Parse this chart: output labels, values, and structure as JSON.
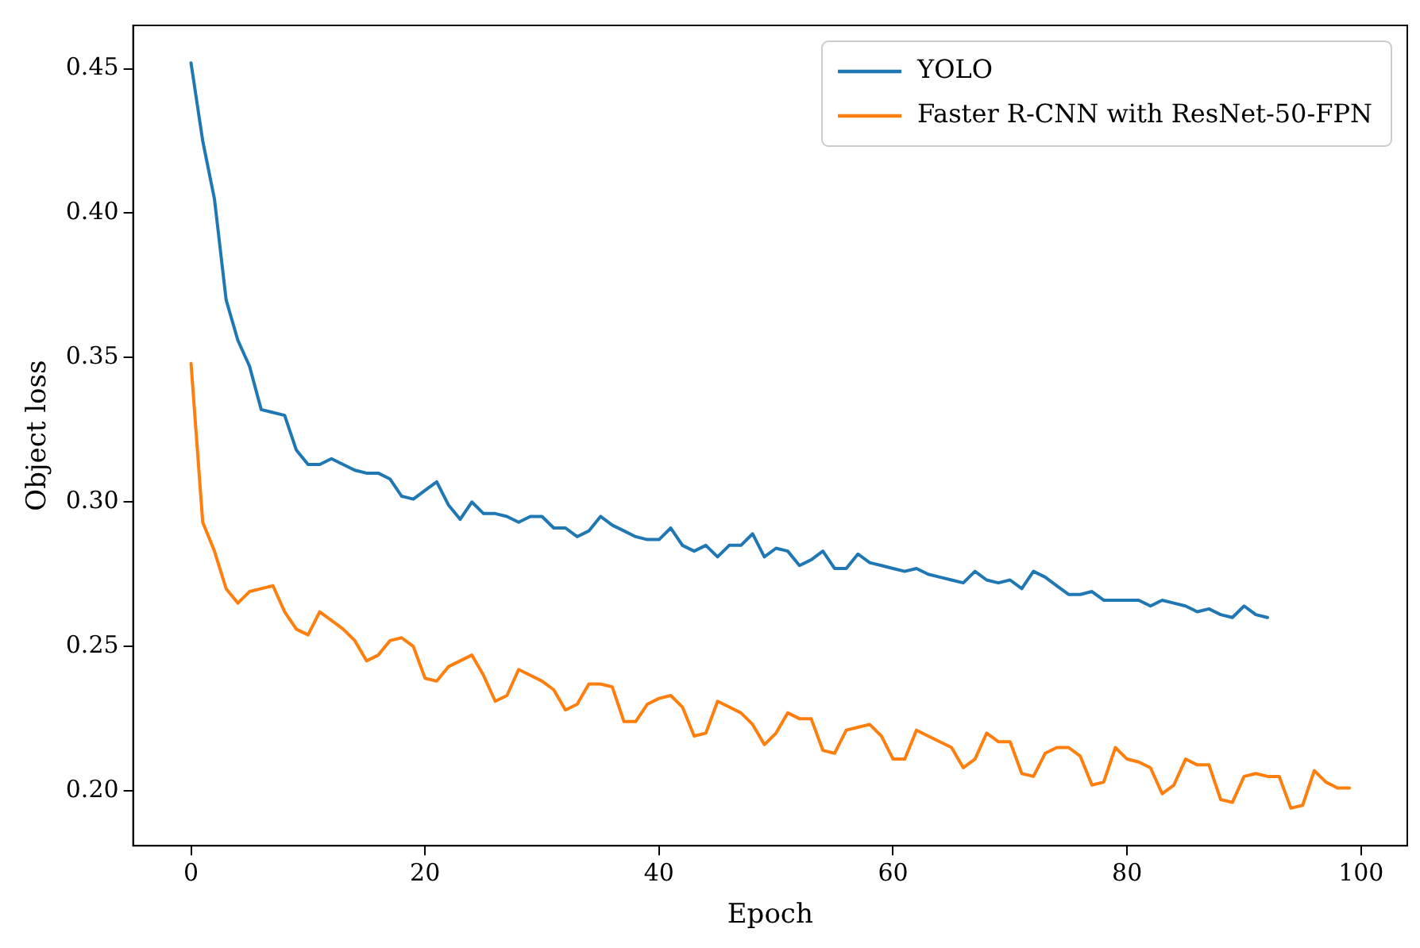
{
  "chart_data": {
    "type": "line",
    "xlabel": "Epoch",
    "ylabel": "Object loss",
    "legend": "top right",
    "grid": false,
    "marker": "none",
    "line_style": "solid",
    "xlim": [
      -4.95,
      103.95
    ],
    "xticks": [
      0,
      20,
      40,
      60,
      80,
      100
    ],
    "ylim": [
      0.181,
      0.465
    ],
    "yticks": [
      {
        "value": 0.2,
        "label": "0.20"
      },
      {
        "value": 0.25,
        "label": "0.25"
      },
      {
        "value": 0.3,
        "label": "0.30"
      },
      {
        "value": 0.35,
        "label": "0.35"
      },
      {
        "value": 0.4,
        "label": "0.40"
      },
      {
        "value": 0.45,
        "label": "0.45"
      }
    ],
    "series": [
      {
        "name": "YOLO",
        "color": "#1f77b4",
        "x": [
          0,
          1,
          2,
          3,
          4,
          5,
          6,
          7,
          8,
          9,
          10,
          11,
          12,
          13,
          14,
          15,
          16,
          17,
          18,
          19,
          20,
          21,
          22,
          23,
          24,
          25,
          26,
          27,
          28,
          29,
          30,
          31,
          32,
          33,
          34,
          35,
          36,
          37,
          38,
          39,
          40,
          41,
          42,
          43,
          44,
          45,
          46,
          47,
          48,
          49,
          50,
          51,
          52,
          53,
          54,
          55,
          56,
          57,
          58,
          59,
          60,
          61,
          62,
          63,
          64,
          65,
          66,
          67,
          68,
          69,
          70,
          71,
          72,
          73,
          74,
          75,
          76,
          77,
          78,
          79,
          80,
          81,
          82,
          83,
          84,
          85,
          86,
          87,
          88,
          89,
          90,
          91,
          92
        ],
        "values": [
          0.452,
          0.425,
          0.405,
          0.37,
          0.356,
          0.347,
          0.332,
          0.331,
          0.33,
          0.318,
          0.313,
          0.313,
          0.315,
          0.313,
          0.311,
          0.31,
          0.31,
          0.308,
          0.302,
          0.301,
          0.304,
          0.307,
          0.299,
          0.294,
          0.3,
          0.296,
          0.296,
          0.295,
          0.293,
          0.295,
          0.295,
          0.291,
          0.291,
          0.288,
          0.29,
          0.295,
          0.292,
          0.29,
          0.288,
          0.287,
          0.287,
          0.291,
          0.285,
          0.283,
          0.285,
          0.281,
          0.285,
          0.285,
          0.289,
          0.281,
          0.284,
          0.283,
          0.278,
          0.28,
          0.283,
          0.277,
          0.277,
          0.282,
          0.279,
          0.278,
          0.277,
          0.276,
          0.277,
          0.275,
          0.274,
          0.273,
          0.272,
          0.276,
          0.273,
          0.272,
          0.273,
          0.27,
          0.276,
          0.274,
          0.271,
          0.268,
          0.268,
          0.269,
          0.266,
          0.266,
          0.266,
          0.266,
          0.264,
          0.266,
          0.265,
          0.264,
          0.262,
          0.263,
          0.261,
          0.26,
          0.264,
          0.261,
          0.26
        ]
      },
      {
        "name": "Faster R-CNN with ResNet-50-FPN",
        "color": "#ff7f0e",
        "x": [
          0,
          1,
          2,
          3,
          4,
          5,
          6,
          7,
          8,
          9,
          10,
          11,
          12,
          13,
          14,
          15,
          16,
          17,
          18,
          19,
          20,
          21,
          22,
          23,
          24,
          25,
          26,
          27,
          28,
          29,
          30,
          31,
          32,
          33,
          34,
          35,
          36,
          37,
          38,
          39,
          40,
          41,
          42,
          43,
          44,
          45,
          46,
          47,
          48,
          49,
          50,
          51,
          52,
          53,
          54,
          55,
          56,
          57,
          58,
          59,
          60,
          61,
          62,
          63,
          64,
          65,
          66,
          67,
          68,
          69,
          70,
          71,
          72,
          73,
          74,
          75,
          76,
          77,
          78,
          79,
          80,
          81,
          82,
          83,
          84,
          85,
          86,
          87,
          88,
          89,
          90,
          91,
          92,
          93,
          94,
          95,
          96,
          97,
          98,
          99
        ],
        "values": [
          0.348,
          0.293,
          0.283,
          0.27,
          0.265,
          0.269,
          0.27,
          0.271,
          0.262,
          0.256,
          0.254,
          0.262,
          0.259,
          0.256,
          0.252,
          0.245,
          0.247,
          0.252,
          0.253,
          0.25,
          0.239,
          0.238,
          0.243,
          0.245,
          0.247,
          0.24,
          0.231,
          0.233,
          0.242,
          0.24,
          0.238,
          0.235,
          0.228,
          0.23,
          0.237,
          0.237,
          0.236,
          0.224,
          0.224,
          0.23,
          0.232,
          0.233,
          0.229,
          0.219,
          0.22,
          0.231,
          0.229,
          0.227,
          0.223,
          0.216,
          0.22,
          0.227,
          0.225,
          0.225,
          0.214,
          0.213,
          0.221,
          0.222,
          0.223,
          0.219,
          0.211,
          0.211,
          0.221,
          0.219,
          0.217,
          0.215,
          0.208,
          0.211,
          0.22,
          0.217,
          0.217,
          0.206,
          0.205,
          0.213,
          0.215,
          0.215,
          0.212,
          0.202,
          0.203,
          0.215,
          0.211,
          0.21,
          0.208,
          0.199,
          0.202,
          0.211,
          0.209,
          0.209,
          0.197,
          0.196,
          0.205,
          0.206,
          0.205,
          0.205,
          0.194,
          0.195,
          0.207,
          0.203,
          0.201,
          0.201
        ]
      }
    ]
  }
}
